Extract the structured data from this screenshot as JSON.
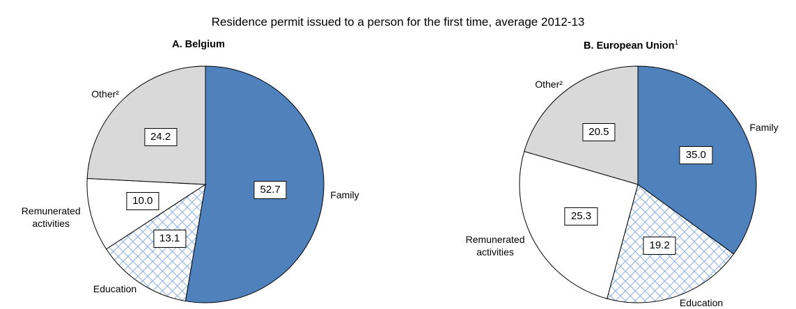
{
  "figure_title": "Residence permit issued to a person for the first time, average 2012-13",
  "chart_data": [
    {
      "type": "pie",
      "title": "A. Belgium",
      "categories": [
        "Family",
        "Education",
        "Remunerated activities",
        "Other²"
      ],
      "values": [
        52.7,
        13.1,
        10.0,
        24.2
      ],
      "value_labels": [
        "52.7",
        "13.1",
        "10.0",
        "24.2"
      ],
      "colors": [
        "#4f81bd",
        "#ffffff",
        "#ffffff",
        "#d9d9d9"
      ],
      "patterns": [
        null,
        "crosshatch",
        null,
        null
      ]
    },
    {
      "type": "pie",
      "title": "B. European Union",
      "title_note": "1",
      "categories": [
        "Family",
        "Education",
        "Remunerated activities",
        "Other²"
      ],
      "values": [
        35.0,
        19.2,
        25.3,
        20.5
      ],
      "value_labels": [
        "35.0",
        "19.2",
        "25.3",
        "20.5"
      ],
      "colors": [
        "#4f81bd",
        "#ffffff",
        "#ffffff",
        "#d9d9d9"
      ],
      "patterns": [
        null,
        "crosshatch",
        null,
        null
      ]
    }
  ]
}
